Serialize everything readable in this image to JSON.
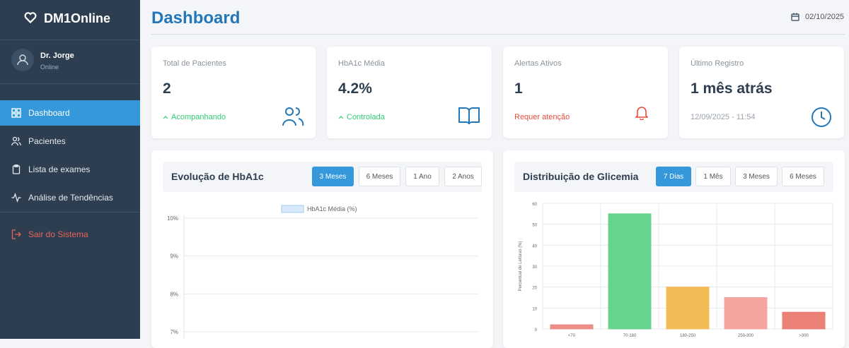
{
  "sidebar": {
    "brand": "DM1Online",
    "user": {
      "name": "Dr. Jorge",
      "status": "Online"
    },
    "nav": [
      "Dashboard",
      "Pacientes",
      "Lista de exames",
      "Análise de Tendências"
    ],
    "logout": "Sair do Sistema"
  },
  "header": {
    "title": "Dashboard",
    "date": "02/10/2025"
  },
  "cards": [
    {
      "label": "Total de Pacientes",
      "value": "2",
      "note": "Acompanhando"
    },
    {
      "label": "HbA1c Média",
      "value": "4.2%",
      "note": "Controlada"
    },
    {
      "label": "Alertas Ativos",
      "value": "1",
      "note": "Requer atenção"
    },
    {
      "label": "Último Registro",
      "value": "1 mês atrás",
      "note": "12/09/2025 - 11:54"
    }
  ],
  "hba1c_chart": {
    "type": "line",
    "title": "Evolução de HbA1c",
    "ranges": [
      "3 Meses",
      "6 Meses",
      "1 Ano",
      "2 Anos"
    ],
    "series": [
      {
        "name": "HbA1c Média (%)",
        "color": "#9ccbf0",
        "values": []
      }
    ],
    "ylim": [
      7,
      10
    ],
    "yticks": [
      {
        "value": 10,
        "label": "10%"
      },
      {
        "value": 9,
        "label": "9%"
      },
      {
        "value": 8,
        "label": "8%"
      },
      {
        "value": 7,
        "label": "7%"
      }
    ],
    "grid": true
  },
  "glicemia_chart": {
    "type": "bar",
    "title": "Distribuição de Glicemia",
    "ranges": [
      "7 Dias",
      "1 Mês",
      "3 Meses",
      "6 Meses"
    ],
    "y_label": "Percentual de Leituras (%)",
    "categories": [
      "<70",
      "70-180",
      "180-250",
      "250-300",
      ">300"
    ],
    "values": [
      2,
      55,
      20,
      15,
      8
    ],
    "colors": [
      "#ec8d86",
      "#66d38e",
      "#f3bb56",
      "#f4a5a0",
      "#ec7f76"
    ],
    "ylim": [
      0,
      60
    ],
    "yticks": [
      0,
      10,
      20,
      30,
      40,
      50,
      60
    ],
    "grid": true
  }
}
